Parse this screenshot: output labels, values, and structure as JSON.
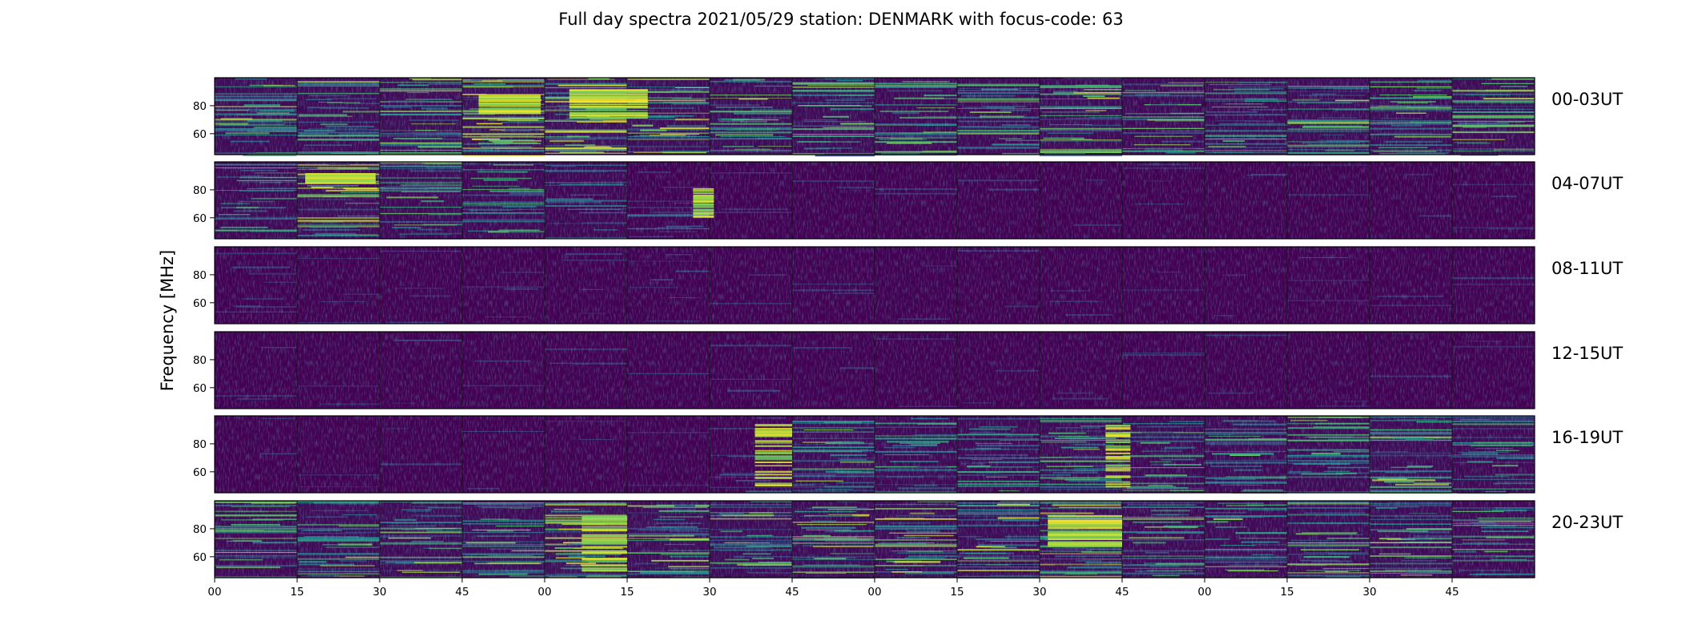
{
  "chart_data": {
    "type": "heatmap",
    "title": "Full day spectra 2021/05/29 station: DENMARK with focus-code: 63",
    "ylabel": "Frequency [MHz]",
    "xlabel": "",
    "y_ticks": [
      "80",
      "60"
    ],
    "ylim": [
      45,
      100
    ],
    "x_ticks": [
      "00",
      "15",
      "30",
      "45",
      "00",
      "15",
      "30",
      "45",
      "00",
      "15",
      "30",
      "45",
      "00",
      "15",
      "30",
      "45"
    ],
    "colormap": "viridis",
    "colors": {
      "low": "#440154",
      "mid": "#21908d",
      "high": "#fde725"
    },
    "rows": [
      {
        "label": "00-03UT",
        "activity": [
          0.6,
          0.55,
          0.55,
          0.8,
          0.85,
          0.65,
          0.55,
          0.6,
          0.5,
          0.5,
          0.6,
          0.5,
          0.5,
          0.55,
          0.55,
          0.6
        ]
      },
      {
        "label": "04-07UT",
        "activity": [
          0.45,
          0.65,
          0.5,
          0.45,
          0.3,
          0.2,
          0.05,
          0.03,
          0.03,
          0.03,
          0.03,
          0.05,
          0.03,
          0.03,
          0.03,
          0.05
        ]
      },
      {
        "label": "08-11UT",
        "activity": [
          0.12,
          0.06,
          0.05,
          0.06,
          0.05,
          0.1,
          0.03,
          0.04,
          0.03,
          0.03,
          0.04,
          0.03,
          0.03,
          0.04,
          0.03,
          0.03
        ]
      },
      {
        "label": "12-15UT",
        "activity": [
          0.04,
          0.03,
          0.03,
          0.03,
          0.04,
          0.03,
          0.04,
          0.03,
          0.03,
          0.03,
          0.03,
          0.03,
          0.03,
          0.03,
          0.03,
          0.03
        ]
      },
      {
        "label": "16-19UT",
        "activity": [
          0.03,
          0.03,
          0.03,
          0.03,
          0.03,
          0.03,
          0.15,
          0.55,
          0.4,
          0.5,
          0.55,
          0.45,
          0.5,
          0.5,
          0.55,
          0.45
        ]
      },
      {
        "label": "20-23UT",
        "activity": [
          0.5,
          0.55,
          0.55,
          0.55,
          0.8,
          0.55,
          0.55,
          0.6,
          0.6,
          0.6,
          0.7,
          0.5,
          0.5,
          0.55,
          0.55,
          0.5
        ]
      }
    ]
  }
}
